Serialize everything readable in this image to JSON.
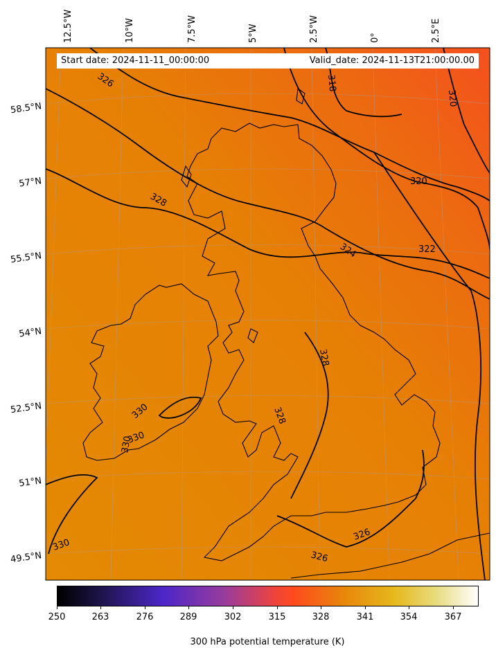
{
  "header": {
    "start_date": "Start date: 2024-11-11_00:00:00",
    "valid_date": "Valid_date: 2024-11-13T21:00:00.00"
  },
  "map": {
    "field": "300 hPa potential temperature (K)",
    "background_colors": {
      "west": "#e48c04",
      "east": "#f25a1c"
    },
    "gridline_color": "#9aa0aa",
    "lon_labels": [
      "12.5°W",
      "10°W",
      "7.5°W",
      "5°W",
      "2.5°W",
      "0°",
      "2.5°E"
    ],
    "lat_labels": [
      "58.5°N",
      "57°N",
      "55.5°N",
      "54°N",
      "52.5°N",
      "51°N",
      "49.5°N"
    ],
    "contour_labels": [
      "326",
      "328",
      "318",
      "320",
      "320",
      "322",
      "324",
      "328",
      "328",
      "330",
      "330",
      "330",
      "326",
      "326",
      "330"
    ]
  },
  "colorbar": {
    "ticks": [
      "250",
      "263",
      "276",
      "289",
      "302",
      "315",
      "328",
      "341",
      "354",
      "367"
    ],
    "label": "300 hPa potential temperature (K)",
    "colormap": [
      "#000000",
      "#2a1b6e",
      "#4b26c8",
      "#8a3aa8",
      "#d2484e",
      "#ff4a1e",
      "#e9820a",
      "#e6b21a",
      "#e8d676",
      "#ffffff"
    ]
  }
}
